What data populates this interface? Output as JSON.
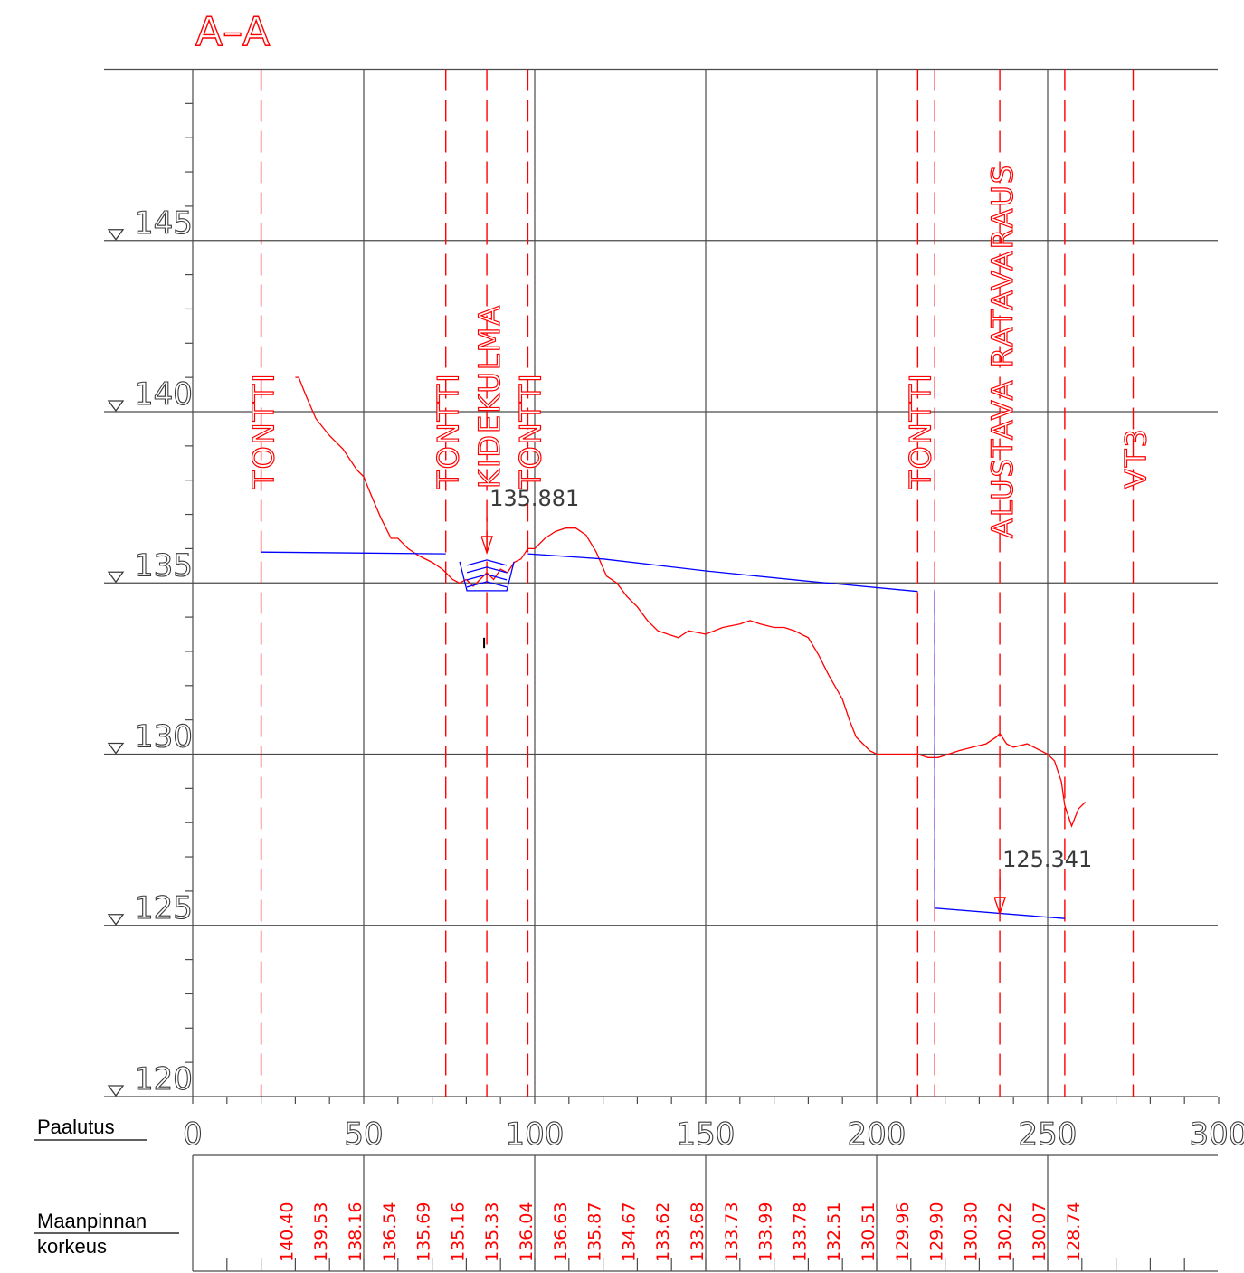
{
  "title": "A–A",
  "y_axis": {
    "ticks": [
      "145",
      "140",
      "135",
      "130",
      "125",
      "120"
    ]
  },
  "x_axis": {
    "label": "Paalutus",
    "ticks": [
      "0",
      "50",
      "100",
      "150",
      "200",
      "250",
      "300"
    ]
  },
  "elevation_row": {
    "label_line1": "Maanpinnan",
    "label_line2": "korkeus",
    "values": [
      "140.40",
      "139.53",
      "138.16",
      "136.54",
      "135.69",
      "135.16",
      "135.33",
      "136.04",
      "136.63",
      "135.87",
      "134.67",
      "133.62",
      "133.68",
      "133.73",
      "133.99",
      "133.78",
      "132.51",
      "130.51",
      "129.96",
      "129.90",
      "130.30",
      "130.22",
      "130.07",
      "128.74"
    ]
  },
  "boundary_lines": [
    {
      "station": 20,
      "label": "TONTTI"
    },
    {
      "station": 74,
      "label": "TONTTI"
    },
    {
      "station": 86,
      "label": "KIDEKULMA"
    },
    {
      "station": 98,
      "label": "TONTTI"
    },
    {
      "station": 212,
      "label": "TONTTI"
    },
    {
      "station": 217,
      "label": ""
    },
    {
      "station": 236,
      "label": "ALUSTAVA RATAVARAUS"
    },
    {
      "station": 255,
      "label": ""
    },
    {
      "station": 275,
      "label": "VT3"
    }
  ],
  "annotations": [
    {
      "text": "135.881",
      "station": 86,
      "elevation": 135.881
    },
    {
      "text": "125.341",
      "station": 236,
      "elevation": 125.341
    }
  ],
  "chart_data": {
    "type": "line",
    "title": "A–A",
    "xlabel": "Paalutus",
    "ylabel": "",
    "xlim": [
      0,
      300
    ],
    "ylim": [
      120,
      150
    ],
    "series": [
      {
        "name": "Maanpinnan korkeus",
        "color": "#ff0000",
        "x": [
          30,
          31,
          33,
          36,
          40,
          44,
          48,
          50,
          52,
          55,
          58,
          60,
          63,
          66,
          70,
          73,
          76,
          78,
          80,
          82,
          84,
          86,
          88,
          90,
          92,
          94,
          96,
          98,
          100,
          103,
          106,
          109,
          112,
          115,
          118,
          121,
          124,
          127,
          130,
          133,
          136,
          139,
          142,
          145,
          150,
          155,
          160,
          163,
          166,
          170,
          173,
          176,
          180,
          183,
          186,
          190,
          192,
          194,
          196,
          198,
          200,
          202,
          205,
          208,
          212,
          215,
          218,
          221,
          224,
          228,
          232,
          235,
          236,
          238,
          240,
          244,
          248,
          250,
          252,
          254,
          255,
          257,
          259,
          261
        ],
        "y": [
          141.0,
          141.0,
          140.5,
          139.8,
          139.3,
          138.9,
          138.3,
          138.1,
          137.6,
          136.9,
          136.3,
          136.3,
          136.0,
          135.8,
          135.6,
          135.4,
          135.1,
          135.0,
          135.1,
          134.9,
          135.1,
          135.3,
          135.1,
          135.4,
          135.3,
          135.6,
          135.7,
          136.0,
          136.0,
          136.3,
          136.5,
          136.6,
          136.6,
          136.4,
          135.9,
          135.2,
          135.0,
          134.6,
          134.3,
          133.9,
          133.6,
          133.5,
          133.4,
          133.6,
          133.5,
          133.7,
          133.8,
          133.9,
          133.8,
          133.7,
          133.7,
          133.6,
          133.4,
          132.9,
          132.3,
          131.6,
          131.0,
          130.5,
          130.3,
          130.1,
          130.0,
          130.0,
          130.0,
          130.0,
          130.0,
          129.9,
          129.9,
          130.0,
          130.1,
          130.2,
          130.3,
          130.5,
          130.6,
          130.3,
          130.2,
          130.3,
          130.1,
          130.0,
          129.8,
          129.2,
          128.5,
          127.9,
          128.4,
          128.6
        ]
      },
      {
        "name": "",
        "color": "#0000ff",
        "x": [
          20,
          74
        ],
        "y": [
          135.9,
          135.85
        ]
      },
      {
        "name": "",
        "color": "#0000ff",
        "x": [
          98,
          120,
          150,
          180,
          212,
          212
        ],
        "y": [
          135.85,
          135.7,
          135.35,
          135.05,
          134.75,
          134.75
        ]
      },
      {
        "name": "",
        "color": "#0000ff",
        "x": [
          217,
          217,
          255,
          255
        ],
        "y": [
          134.8,
          125.5,
          125.2,
          125.2
        ]
      }
    ],
    "grid": true
  }
}
